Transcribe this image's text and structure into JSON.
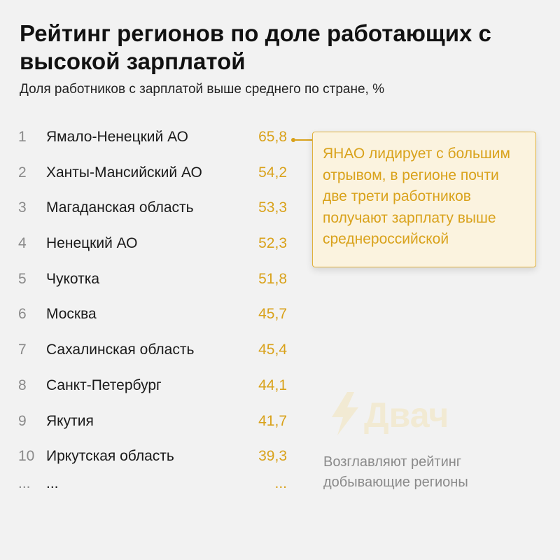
{
  "header": {
    "title": "Рейтинг регионов по доле работающих с высокой зарплатой",
    "subtitle": "Доля работников с зарплатой выше среднего по стране, %"
  },
  "chart_data": {
    "type": "table",
    "title": "Рейтинг регионов по доле работающих с высокой зарплатой",
    "subtitle": "Доля работников с зарплатой выше среднего по стране, %",
    "unit": "%",
    "rows": [
      {
        "rank": "1",
        "name": "Ямало-Ненецкий АО",
        "value": "65,8"
      },
      {
        "rank": "2",
        "name": "Ханты-Мансийский АО",
        "value": "54,2"
      },
      {
        "rank": "3",
        "name": "Магаданская область",
        "value": "53,3"
      },
      {
        "rank": "4",
        "name": "Ненецкий АО",
        "value": "52,3"
      },
      {
        "rank": "5",
        "name": "Чукотка",
        "value": "51,8"
      },
      {
        "rank": "6",
        "name": "Москва",
        "value": "45,7"
      },
      {
        "rank": "7",
        "name": "Сахалинская область",
        "value": "45,4"
      },
      {
        "rank": "8",
        "name": "Санкт-Петербург",
        "value": "44,1"
      },
      {
        "rank": "9",
        "name": "Якутия",
        "value": "41,7"
      },
      {
        "rank": "10",
        "name": "Иркутская область",
        "value": "39,3"
      }
    ],
    "continuation": {
      "rank": "...",
      "name": "...",
      "value": "..."
    },
    "annotations": [
      "ЯНАО лидирует с большим отрывом, в регионе почти две трети работников получают зарплату выше среднероссийской",
      "Возглавляют рейтинг добывающие регионы"
    ]
  },
  "callout": {
    "text": "ЯНАО лидирует с большим отрывом, в регионе почти две трети работников получают зарплату выше среднероссийской"
  },
  "note": {
    "text": "Возглавляют рейтинг добывающие регионы"
  },
  "watermark": {
    "text": "Двач",
    "icon": "lightning-bolt-icon"
  },
  "colors": {
    "accent": "#d9a21b",
    "background": "#f2f2f2",
    "callout_bg": "#fbf3df",
    "muted": "#8a8a8a"
  }
}
